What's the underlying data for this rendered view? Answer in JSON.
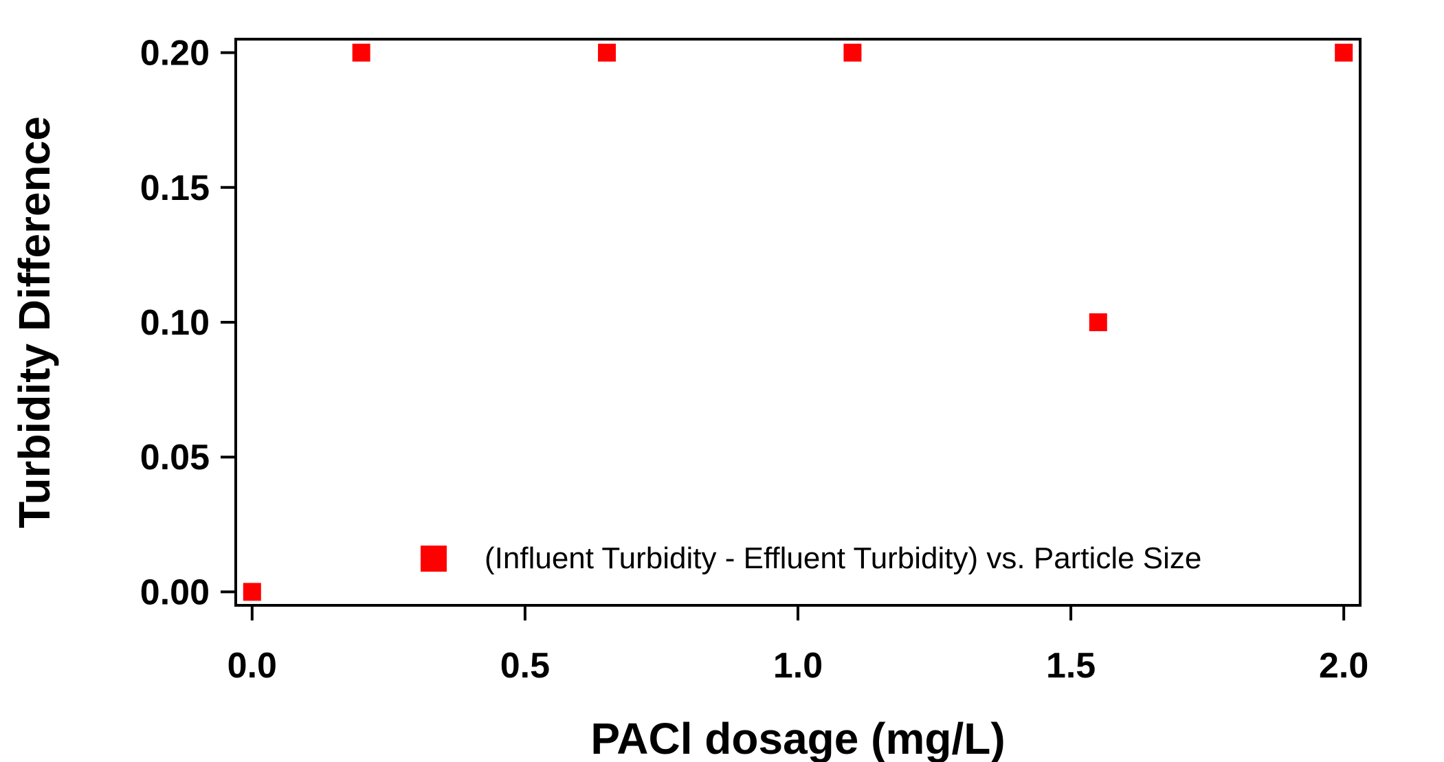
{
  "chart_data": {
    "type": "scatter",
    "title": "",
    "xlabel": "PACl dosage (mg/L)",
    "ylabel": "Turbidity Difference",
    "xlim": [
      -0.03,
      2.03
    ],
    "ylim": [
      -0.005,
      0.205
    ],
    "x_ticks": [
      "0.0",
      "0.5",
      "1.0",
      "1.5",
      "2.0"
    ],
    "y_ticks": [
      "0.00",
      "0.05",
      "0.10",
      "0.15",
      "0.20"
    ],
    "grid": false,
    "legend_position": "bottom-right",
    "series": [
      {
        "name": "(Influent Turbidity - Effluent Turbidity) vs. Particle Size",
        "color": "#ff0000",
        "marker": "square",
        "x": [
          0.0,
          0.2,
          0.65,
          1.1,
          1.55,
          2.0
        ],
        "y": [
          0.0,
          0.2,
          0.2,
          0.2,
          0.1,
          0.2
        ]
      }
    ]
  }
}
